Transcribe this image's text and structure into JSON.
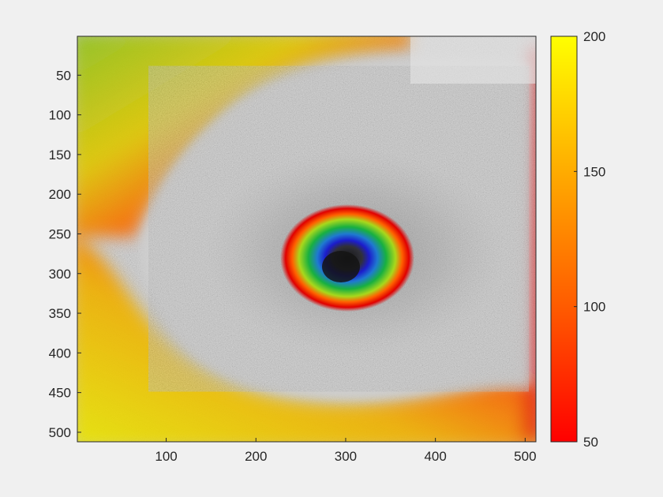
{
  "chart_data": {
    "type": "heatmap",
    "title": "",
    "xlabel": "",
    "ylabel": "",
    "xlim": [
      1,
      512
    ],
    "ylim": [
      512,
      1
    ],
    "y_direction": "reversed",
    "xticks": [
      100,
      200,
      300,
      400,
      500
    ],
    "yticks": [
      50,
      100,
      150,
      200,
      250,
      300,
      350,
      400,
      450,
      500
    ],
    "background_image": "grayscale noisy retinal scan",
    "colorbar": {
      "position": "right",
      "range": [
        50,
        200
      ],
      "ticks": [
        50,
        100,
        150,
        200
      ],
      "colormap_stops": [
        {
          "value": 50,
          "color": "#ff0000"
        },
        {
          "value": 100,
          "color": "#ff5a00"
        },
        {
          "value": 150,
          "color": "#ffaa00"
        },
        {
          "value": 200,
          "color": "#ffff00"
        }
      ]
    },
    "overlay_regions": [
      {
        "label": "central-pit",
        "center": [
          295,
          300
        ],
        "radii_colors": [
          "#1a1a1a",
          "#2020cc",
          "#20a040",
          "#a0d020",
          "#ff3000"
        ]
      },
      {
        "label": "outer-field",
        "color_range": [
          "#ff0000",
          "#ffee00"
        ],
        "value_range": [
          50,
          200
        ]
      }
    ]
  }
}
